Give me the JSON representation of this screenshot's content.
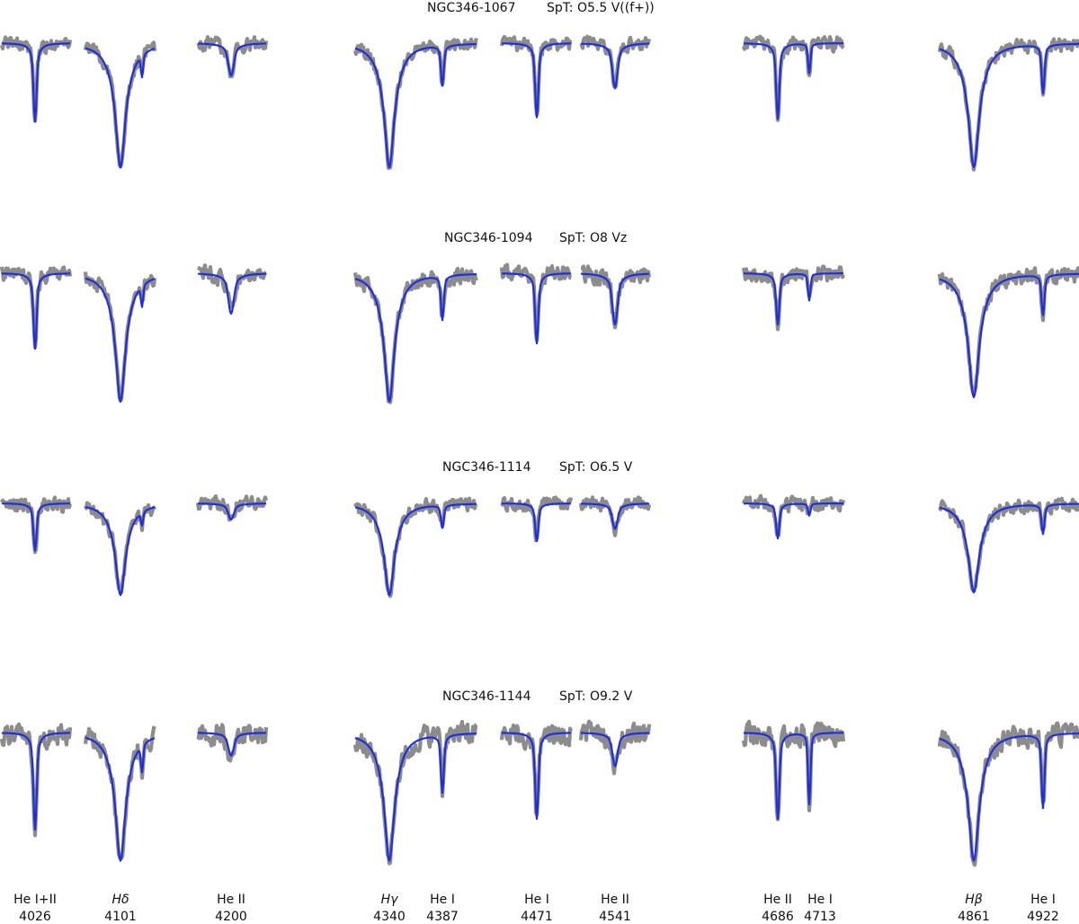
{
  "chart_data": {
    "type": "line",
    "title": "",
    "xlabel": "",
    "ylabel": "",
    "legend": "none",
    "grid": false,
    "series_styles": {
      "observed": {
        "color": "#8c8c8c"
      },
      "model": {
        "color": "#1f2fe0"
      }
    },
    "windows": [
      {
        "id": "w4026",
        "lines": [
          {
            "ion": "He I+II",
            "wavelength": "4026",
            "italic": false
          }
        ]
      },
      {
        "id": "w4101",
        "lines": [
          {
            "ion": "Hδ",
            "wavelength": "4101",
            "italic": true
          }
        ]
      },
      {
        "id": "w4200",
        "lines": [
          {
            "ion": "He II",
            "wavelength": "4200",
            "italic": false
          }
        ]
      },
      {
        "id": "w4340",
        "lines": [
          {
            "ion": "Hγ",
            "wavelength": "4340",
            "italic": true
          },
          {
            "ion": "He I",
            "wavelength": "4387",
            "italic": false
          }
        ]
      },
      {
        "id": "w4471",
        "lines": [
          {
            "ion": "He I",
            "wavelength": "4471",
            "italic": false
          }
        ]
      },
      {
        "id": "w4541",
        "lines": [
          {
            "ion": "He II",
            "wavelength": "4541",
            "italic": false
          }
        ]
      },
      {
        "id": "w4686",
        "lines": [
          {
            "ion": "He II",
            "wavelength": "4686",
            "italic": false
          },
          {
            "ion": "He I",
            "wavelength": "4713",
            "italic": false
          }
        ]
      },
      {
        "id": "w4861",
        "lines": [
          {
            "ion": "Hβ",
            "wavelength": "4861",
            "italic": true
          },
          {
            "ion": "He I",
            "wavelength": "4922",
            "italic": false
          }
        ]
      }
    ],
    "stars": [
      {
        "name": "NGC346-1067",
        "spt": "SpT: O5.5 V((f+))",
        "depths": {
          "4026": 0.58,
          "4101": 0.92,
          "4200": 0.24,
          "4340": 0.92,
          "4387": 0.3,
          "4471": 0.55,
          "4541": 0.33,
          "4686": 0.56,
          "4713": 0.22,
          "4861": 0.92,
          "4922": 0.36
        }
      },
      {
        "name": "NGC346-1094",
        "spt": "SpT: O8 Vz",
        "depths": {
          "4026": 0.56,
          "4101": 0.95,
          "4200": 0.3,
          "4340": 0.95,
          "4387": 0.33,
          "4471": 0.52,
          "4541": 0.38,
          "4686": 0.38,
          "4713": 0.2,
          "4861": 0.92,
          "4922": 0.3
        }
      },
      {
        "name": "NGC346-1114",
        "spt": "SpT: O6.5 V",
        "depths": {
          "4026": 0.35,
          "4101": 0.68,
          "4200": 0.12,
          "4340": 0.68,
          "4387": 0.17,
          "4471": 0.28,
          "4541": 0.19,
          "4686": 0.26,
          "4713": 0.09,
          "4861": 0.66,
          "4922": 0.22
        }
      },
      {
        "name": "NGC346-1144",
        "spt": "SpT: O9.2 V",
        "depths": {
          "4026": 0.72,
          "4101": 0.95,
          "4200": 0.17,
          "4340": 0.95,
          "4387": 0.43,
          "4471": 0.64,
          "4541": 0.25,
          "4686": 0.64,
          "4713": 0.53,
          "4861": 0.95,
          "4922": 0.55
        }
      }
    ]
  }
}
